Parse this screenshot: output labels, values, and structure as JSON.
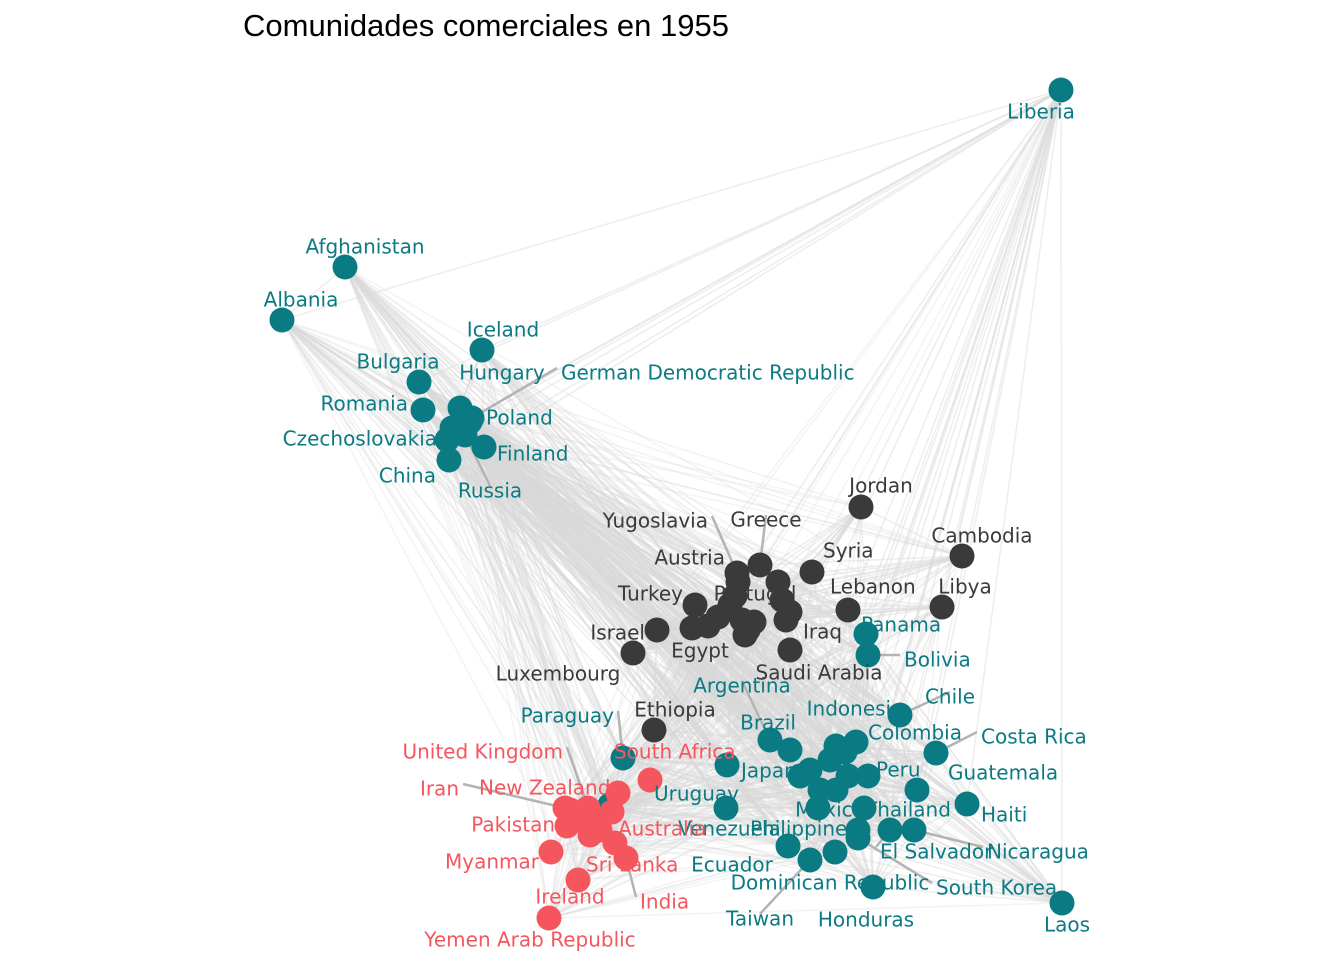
{
  "title": "Comunidades comerciales en 1955",
  "colors": {
    "teal": "#0B7B83",
    "dark": "#3A3A3A",
    "red": "#F5565E",
    "edge": "#d9d9d9",
    "leader": "#b3b3b3"
  },
  "communities": {
    "teal": [
      "Liberia",
      "Afghanistan",
      "Albania",
      "Iceland",
      "Bulgaria",
      "Hungary",
      "German Democratic Republic",
      "Romania",
      "Poland",
      "Czechoslovakia",
      "Finland",
      "China",
      "Russia",
      "Panama",
      "Bolivia",
      "Chile",
      "Argentina",
      "Indonesia",
      "Paraguay",
      "Brazil",
      "Colombia",
      "Costa Rica",
      "Japan",
      "Peru",
      "Guatemala",
      "Uruguay",
      "Mexico",
      "Thailand",
      "Haiti",
      "Venezuela",
      "Philippines",
      "El Salvador",
      "Nicaragua",
      "Ecuador",
      "Dominican Republic",
      "South Korea",
      "Taiwan",
      "Honduras",
      "Laos"
    ],
    "dark": [
      "Jordan",
      "Yugoslavia",
      "Greece",
      "Cambodia",
      "Syria",
      "Austria",
      "Lebanon",
      "Turkey",
      "Portugal",
      "Libya",
      "Israel",
      "Iraq",
      "Egypt",
      "Saudi Arabia",
      "Luxembourg",
      "Ethiopia"
    ],
    "red": [
      "United Kingdom",
      "South Africa",
      "Iran",
      "New Zealand",
      "Pakistan",
      "Australia",
      "Myanmar",
      "Sri Lanka",
      "Ireland",
      "India",
      "Yemen Arab Republic"
    ]
  }
}
